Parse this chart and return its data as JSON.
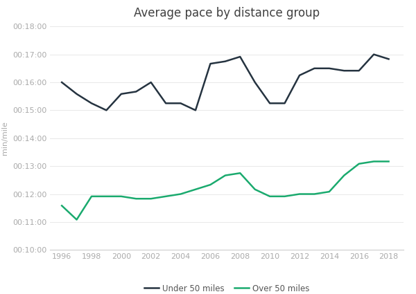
{
  "title": "Average pace by distance group",
  "ylabel": "min/mile",
  "years": [
    1996,
    1997,
    1998,
    1999,
    2000,
    2001,
    2002,
    2003,
    2004,
    2005,
    2006,
    2007,
    2008,
    2009,
    2010,
    2011,
    2012,
    2013,
    2014,
    2015,
    2016,
    2017,
    2018
  ],
  "under50": [
    960,
    935,
    915,
    900,
    935,
    940,
    960,
    915,
    915,
    900,
    1000,
    1005,
    1015,
    960,
    915,
    915,
    975,
    990,
    990,
    985,
    985,
    1020,
    1010
  ],
  "over50": [
    695,
    665,
    715,
    715,
    715,
    710,
    710,
    715,
    720,
    730,
    740,
    760,
    765,
    730,
    715,
    715,
    720,
    720,
    725,
    760,
    785,
    790,
    790
  ],
  "under50_color": "#253340",
  "over50_color": "#1aaa6e",
  "legend_under": "Under 50 miles",
  "legend_over": "Over 50 miles",
  "ylim_min": 600,
  "ylim_max": 1080,
  "yticks": [
    600,
    660,
    720,
    780,
    840,
    900,
    960,
    1020,
    1080
  ],
  "ytick_labels": [
    "00:10:00",
    "00:11:00",
    "00:12:00",
    "00:13:00",
    "00:14:00",
    "00:15:00",
    "00:16:00",
    "00:17:00",
    "00:18:00"
  ],
  "xticks": [
    1996,
    1998,
    2000,
    2002,
    2004,
    2006,
    2008,
    2010,
    2012,
    2014,
    2016,
    2018
  ],
  "background_color": "#ffffff",
  "linewidth": 1.8,
  "tick_color": "#aaaaaa",
  "title_fontsize": 12,
  "axis_fontsize": 8,
  "ylabel_fontsize": 8
}
